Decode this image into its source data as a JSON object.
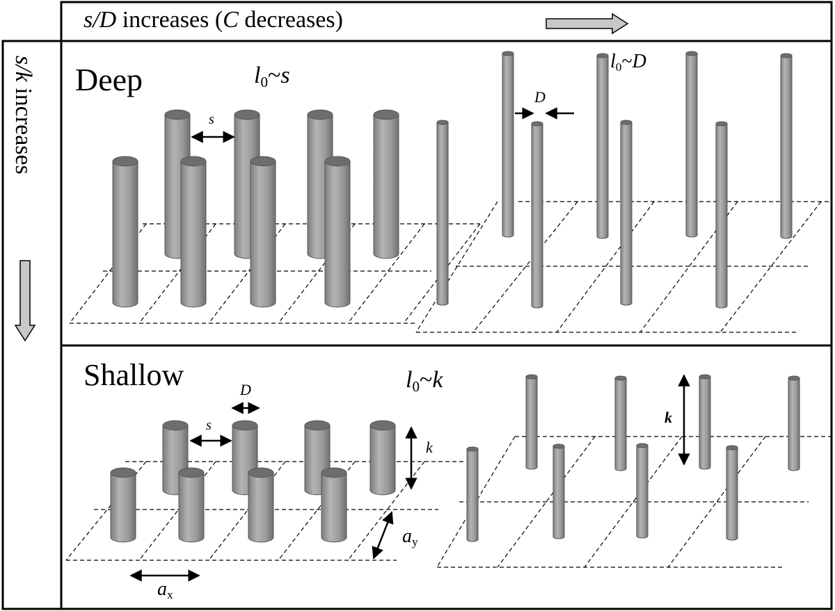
{
  "top_header": {
    "label_ratio": "s/D",
    "label_rest": " increases  (",
    "label_c": "C",
    "label_end": " decreases)"
  },
  "side_header": {
    "label_ratio": "s/k",
    "label_rest": " increases"
  },
  "deep_panel": {
    "title": "Deep",
    "scale_l": "l",
    "scale_sub": "0",
    "scale_tilde": "~",
    "scale_var": "s",
    "spacing_label": "s",
    "right_scale_l": "l",
    "right_scale_sub": "0",
    "right_scale_tilde": "~",
    "right_scale_var": "D",
    "diameter_label": "D"
  },
  "shallow_panel": {
    "title": "Shallow",
    "scale_l": "l",
    "scale_sub": "0",
    "scale_tilde": "~",
    "scale_var": "k",
    "diameter_label": "D",
    "spacing_label": "s",
    "height_label": "k",
    "height_label_right": "k",
    "ay_label": "a",
    "ay_sub": "y",
    "ax_label": "a",
    "ax_sub": "x"
  },
  "colors": {
    "cylinder_body": "#9a9a9a",
    "cylinder_top": "#6e6e6e",
    "arrow_fill": "#c8c8c8",
    "line": "#000000"
  }
}
